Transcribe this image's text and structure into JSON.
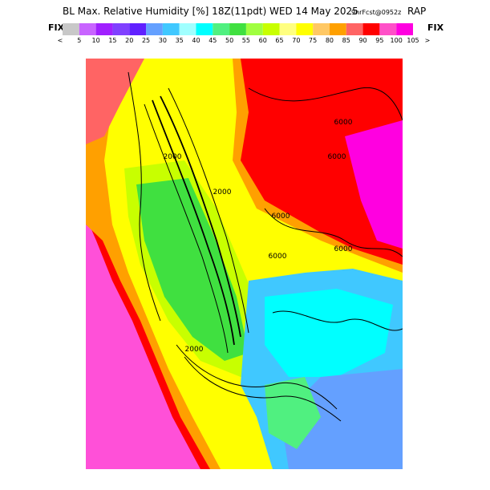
{
  "header": {
    "title": "BL Max. Relative Humidity [%] 18Z(11pdt) WED 14 May 2025",
    "forecast": "9hrFcst@0952z",
    "model": "RAP"
  },
  "legend": {
    "left_label": "FIX",
    "right_label": "FIX",
    "colors": [
      "#c8c8c8",
      "#c864ff",
      "#a020ff",
      "#8040ff",
      "#6020ff",
      "#64a0ff",
      "#40c8ff",
      "#a0ffff",
      "#00ffff",
      "#50f080",
      "#40e040",
      "#a0ff40",
      "#c8ff00",
      "#ffff80",
      "#ffff00",
      "#ffc864",
      "#ffa000",
      "#ff6464",
      "#ff0000",
      "#ff50c8",
      "#ff00e0"
    ],
    "labels": [
      "<",
      "5",
      "10",
      "15",
      "20",
      "25",
      "30",
      "35",
      "40",
      "45",
      "50",
      "55",
      "60",
      "65",
      "70",
      "75",
      "80",
      "85",
      "90",
      "95",
      "100",
      "105",
      ">"
    ]
  },
  "contour_labels": [
    "6000",
    "6000",
    "6000",
    "6000",
    "6000",
    "2000",
    "2000",
    "2000"
  ]
}
